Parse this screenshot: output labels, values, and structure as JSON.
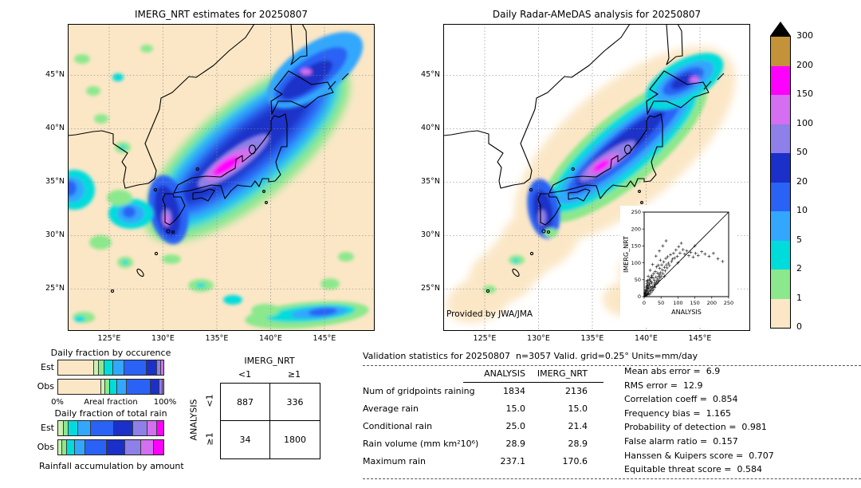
{
  "colorbar": {
    "tick_labels": [
      "300",
      "200",
      "150",
      "100",
      "50",
      "20",
      "10",
      "5",
      "2",
      "1",
      "0"
    ],
    "colors": [
      "#c49238",
      "#ff00ff",
      "#d36ff0",
      "#8f7fe8",
      "#1a30c8",
      "#2a62f5",
      "#33a7fd",
      "#00dcdc",
      "#8ce88c",
      "#fbe7c6"
    ],
    "units": "mm/day"
  },
  "format": {
    "eq": " =  "
  },
  "validation": {
    "title": "Validation statistics for 20250807  n=3057 Valid. grid=0.25° Units=mm/day",
    "col_headers": [
      "ANALYSIS",
      "IMERG_NRT"
    ],
    "rows": [
      {
        "label": "Num of gridpoints raining",
        "analysis": "1834",
        "imerg": "2136"
      },
      {
        "label": "Average rain",
        "analysis": "15.0",
        "imerg": "15.0"
      },
      {
        "label": "Conditional rain",
        "analysis": "25.0",
        "imerg": "21.4"
      },
      {
        "label": "Rain volume (mm km²10⁶)",
        "analysis": "28.9",
        "imerg": "28.9"
      },
      {
        "label": "Maximum rain",
        "analysis": "237.1",
        "imerg": "170.6"
      }
    ]
  },
  "scores": [
    {
      "label": "Mean abs error",
      "value": "6.9"
    },
    {
      "label": "RMS error",
      "value": "12.9"
    },
    {
      "label": "Correlation coeff",
      "value": "0.854"
    },
    {
      "label": "Frequency bias",
      "value": "1.165"
    },
    {
      "label": "Probability of detection",
      "value": "0.981"
    },
    {
      "label": "False alarm ratio",
      "value": "0.157"
    },
    {
      "label": "Hanssen & Kuipers score",
      "value": "0.707"
    },
    {
      "label": "Equitable threat score",
      "value": "0.584"
    }
  ],
  "chart_data": [
    {
      "type": "heatmap",
      "title": "IMERG_NRT estimates for 20250807",
      "units": "mm/day",
      "x_ticks": [
        "125°E",
        "130°E",
        "135°E",
        "140°E",
        "145°E"
      ],
      "y_ticks": [
        "45°N",
        "40°N",
        "35°N",
        "30°N",
        "25°N"
      ],
      "levels": [
        0,
        1,
        2,
        5,
        10,
        20,
        50,
        100,
        150,
        200,
        300
      ],
      "max_value": 170.6,
      "description": "Heavy rain band from Kyushu along the Sea of Japan coast of Honshu to Hokkaido, peak shading >150 mm/day near 136E 36.5N"
    },
    {
      "type": "heatmap",
      "title": "Daily Radar-AMeDAS analysis for 20250807",
      "credit": "Provided by JWA/JMA",
      "units": "mm/day",
      "x_ticks": [
        "125°E",
        "130°E",
        "135°E",
        "140°E",
        "145°E"
      ],
      "y_ticks": [
        "45°N",
        "40°N",
        "35°N",
        "30°N",
        "25°N"
      ],
      "levels": [
        0,
        1,
        2,
        5,
        10,
        20,
        50,
        100,
        150,
        200,
        300
      ],
      "max_value": 237.1,
      "description": "Radar analysis over the Japan radar coverage area; same SW-NE rain band with core >150 mm/day near 136E 36.5N"
    },
    {
      "type": "scatter",
      "xlabel": "ANALYSIS",
      "ylabel": "IMERG_NRT",
      "xlim": [
        0,
        250
      ],
      "ylim": [
        0,
        250
      ],
      "tick_labels": [
        "0",
        "50",
        "100",
        "150",
        "200",
        "250"
      ],
      "identity_line": true,
      "marker": "+",
      "points": [
        [
          2,
          2
        ],
        [
          2,
          10
        ],
        [
          3,
          5
        ],
        [
          3,
          8
        ],
        [
          4,
          4
        ],
        [
          4,
          12
        ],
        [
          4,
          18
        ],
        [
          5,
          3
        ],
        [
          5,
          14
        ],
        [
          6,
          6
        ],
        [
          6,
          20
        ],
        [
          6,
          28
        ],
        [
          7,
          8
        ],
        [
          7,
          18
        ],
        [
          8,
          31
        ],
        [
          8,
          38
        ],
        [
          8,
          45
        ],
        [
          9,
          5
        ],
        [
          9,
          24
        ],
        [
          10,
          15
        ],
        [
          10,
          33
        ],
        [
          10,
          48
        ],
        [
          11,
          8
        ],
        [
          11,
          25
        ],
        [
          12,
          42
        ],
        [
          12,
          60
        ],
        [
          13,
          9
        ],
        [
          13,
          28
        ],
        [
          14,
          22
        ],
        [
          15,
          35
        ],
        [
          15,
          50
        ],
        [
          16,
          7
        ],
        [
          16,
          38
        ],
        [
          17,
          18
        ],
        [
          18,
          47
        ],
        [
          18,
          78
        ],
        [
          19,
          29
        ],
        [
          19,
          55
        ],
        [
          20,
          12
        ],
        [
          21,
          26
        ],
        [
          21,
          44
        ],
        [
          22,
          58
        ],
        [
          23,
          40
        ],
        [
          23,
          62
        ],
        [
          24,
          17
        ],
        [
          25,
          30
        ],
        [
          25,
          95
        ],
        [
          26,
          55
        ],
        [
          27,
          21
        ],
        [
          28,
          68
        ],
        [
          29,
          35
        ],
        [
          30,
          30
        ],
        [
          30,
          49
        ],
        [
          31,
          27
        ],
        [
          32,
          41
        ],
        [
          33,
          74
        ],
        [
          34,
          36
        ],
        [
          35,
          58
        ],
        [
          35,
          120
        ],
        [
          36,
          45
        ],
        [
          37,
          88
        ],
        [
          38,
          39
        ],
        [
          39,
          52
        ],
        [
          40,
          70
        ],
        [
          41,
          44
        ],
        [
          42,
          93
        ],
        [
          43,
          60
        ],
        [
          44,
          48
        ],
        [
          45,
          66
        ],
        [
          45,
          135
        ],
        [
          46,
          84
        ],
        [
          47,
          55
        ],
        [
          48,
          108
        ],
        [
          49,
          71
        ],
        [
          50,
          61
        ],
        [
          52,
          94
        ],
        [
          54,
          79
        ],
        [
          55,
          150
        ],
        [
          56,
          68
        ],
        [
          58,
          103
        ],
        [
          60,
          60
        ],
        [
          60,
          87
        ],
        [
          62,
          76
        ],
        [
          64,
          113
        ],
        [
          65,
          165
        ],
        [
          66,
          94
        ],
        [
          68,
          85
        ],
        [
          70,
          118
        ],
        [
          72,
          99
        ],
        [
          75,
          92
        ],
        [
          78,
          124
        ],
        [
          81,
          104
        ],
        [
          84,
          111
        ],
        [
          87,
          128
        ],
        [
          90,
          114
        ],
        [
          94,
          138
        ],
        [
          98,
          119
        ],
        [
          100,
          100
        ],
        [
          102,
          148
        ],
        [
          106,
          129
        ],
        [
          110,
          158
        ],
        [
          115,
          139
        ],
        [
          120,
          126
        ],
        [
          126,
          135
        ],
        [
          132,
          121
        ],
        [
          138,
          131
        ],
        [
          145,
          117
        ],
        [
          150,
          150
        ],
        [
          152,
          128
        ],
        [
          160,
          122
        ],
        [
          170,
          133
        ],
        [
          180,
          126
        ],
        [
          192,
          119
        ],
        [
          205,
          128
        ],
        [
          218,
          112
        ],
        [
          232,
          104
        ]
      ]
    },
    {
      "type": "bar",
      "id": "occurrence",
      "title": "Daily fraction by occurence",
      "orientation": "horizontal",
      "categories": [
        "Est",
        "Obs"
      ],
      "axis": {
        "min_label": "0%",
        "title": "Areal fraction",
        "max_label": "100%"
      },
      "stacks": {
        "Est": [
          {
            "color": "#fbe7c6",
            "pct": 34
          },
          {
            "color": "#cdf0b0",
            "pct": 5
          },
          {
            "color": "#8ce88c",
            "pct": 5
          },
          {
            "color": "#00dcdc",
            "pct": 8
          },
          {
            "color": "#33a7fd",
            "pct": 11
          },
          {
            "color": "#2a62f5",
            "pct": 21
          },
          {
            "color": "#1a30c8",
            "pct": 10
          },
          {
            "color": "#8f7fe8",
            "pct": 4
          },
          {
            "color": "#d36ff0",
            "pct": 2
          }
        ],
        "Obs": [
          {
            "color": "#fbe7c6",
            "pct": 41
          },
          {
            "color": "#cdf0b0",
            "pct": 4
          },
          {
            "color": "#8ce88c",
            "pct": 4
          },
          {
            "color": "#00dcdc",
            "pct": 7
          },
          {
            "color": "#33a7fd",
            "pct": 9
          },
          {
            "color": "#2a62f5",
            "pct": 23
          },
          {
            "color": "#1a30c8",
            "pct": 8
          },
          {
            "color": "#8f7fe8",
            "pct": 3
          },
          {
            "color": "#d36ff0",
            "pct": 1
          }
        ]
      }
    },
    {
      "type": "bar",
      "id": "total_rain",
      "title": "Daily fraction of total rain",
      "orientation": "horizontal",
      "categories": [
        "Est",
        "Obs"
      ],
      "caption": "Rainfall accumulation by amount",
      "stacks": {
        "Est": [
          {
            "color": "#cdf0b0",
            "pct": 5
          },
          {
            "color": "#8ce88c",
            "pct": 5
          },
          {
            "color": "#00dcdc",
            "pct": 9
          },
          {
            "color": "#33a7fd",
            "pct": 12
          },
          {
            "color": "#2a62f5",
            "pct": 22
          },
          {
            "color": "#1a30c8",
            "pct": 18
          },
          {
            "color": "#8f7fe8",
            "pct": 14
          },
          {
            "color": "#d36ff0",
            "pct": 9
          },
          {
            "color": "#ff00ff",
            "pct": 6
          }
        ],
        "Obs": [
          {
            "color": "#cdf0b0",
            "pct": 4
          },
          {
            "color": "#8ce88c",
            "pct": 4
          },
          {
            "color": "#00dcdc",
            "pct": 8
          },
          {
            "color": "#33a7fd",
            "pct": 10
          },
          {
            "color": "#2a62f5",
            "pct": 20
          },
          {
            "color": "#1a30c8",
            "pct": 18
          },
          {
            "color": "#8f7fe8",
            "pct": 15
          },
          {
            "color": "#d36ff0",
            "pct": 12
          },
          {
            "color": "#ff00ff",
            "pct": 9
          }
        ]
      }
    },
    {
      "type": "table",
      "id": "contingency",
      "col_group": "IMERG_NRT",
      "row_group": "ANALYSIS",
      "col_labels": [
        "<1",
        "≥1"
      ],
      "row_labels": [
        "<1",
        "≥1"
      ],
      "values": [
        [
          887,
          336
        ],
        [
          34,
          1800
        ]
      ]
    }
  ]
}
